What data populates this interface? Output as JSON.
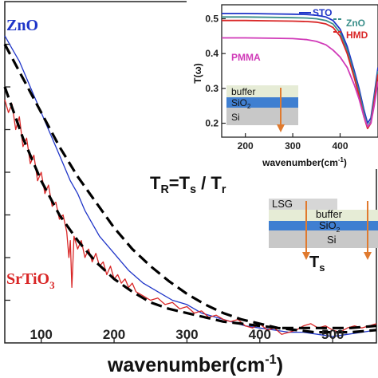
{
  "chart_data": {
    "main": {
      "type": "line",
      "xlabel": "wavenumber(cm",
      "xlabel_sup": "-1",
      "xlabel_close": ")",
      "ylabel": "",
      "xlim": [
        50,
        560
      ],
      "ylim": [
        0.2,
        1.0
      ],
      "xticks": [
        100,
        200,
        300,
        400,
        500
      ],
      "series": [
        {
          "name": "ZnO",
          "color": "#1f35c8",
          "style": "solid",
          "x": [
            50,
            60,
            70,
            80,
            90,
            100,
            110,
            120,
            130,
            140,
            150,
            160,
            170,
            180,
            190,
            200,
            210,
            220,
            240,
            260,
            280,
            300,
            320,
            340,
            360,
            380,
            400,
            420,
            440,
            460,
            480,
            500,
            520,
            540,
            560
          ],
          "y": [
            0.92,
            0.89,
            0.86,
            0.82,
            0.78,
            0.74,
            0.7,
            0.66,
            0.62,
            0.58,
            0.55,
            0.51,
            0.48,
            0.45,
            0.43,
            0.41,
            0.39,
            0.37,
            0.34,
            0.32,
            0.3,
            0.29,
            0.27,
            0.26,
            0.25,
            0.24,
            0.235,
            0.23,
            0.225,
            0.225,
            0.22,
            0.215,
            0.22,
            0.225,
            0.23
          ]
        },
        {
          "name": "SrTiO3",
          "color": "#d92626",
          "style": "solid",
          "x": [
            50,
            55,
            60,
            65,
            70,
            75,
            80,
            85,
            90,
            95,
            100,
            105,
            110,
            115,
            120,
            125,
            130,
            135,
            138,
            140,
            142,
            145,
            150,
            155,
            160,
            165,
            170,
            175,
            180,
            185,
            190,
            195,
            200,
            205,
            210,
            215,
            220,
            225,
            230,
            240,
            250,
            260,
            270,
            280,
            290,
            300,
            310,
            320,
            330,
            340,
            350,
            360,
            370,
            380,
            390,
            400,
            410,
            420,
            430,
            440,
            450,
            460,
            470,
            480,
            490,
            500,
            510,
            520,
            530,
            540,
            550,
            560
          ],
          "y": [
            0.77,
            0.74,
            0.76,
            0.7,
            0.73,
            0.66,
            0.68,
            0.62,
            0.64,
            0.58,
            0.6,
            0.55,
            0.57,
            0.52,
            0.53,
            0.49,
            0.5,
            0.46,
            0.4,
            0.44,
            0.33,
            0.45,
            0.42,
            0.44,
            0.4,
            0.42,
            0.39,
            0.41,
            0.38,
            0.39,
            0.36,
            0.38,
            0.35,
            0.36,
            0.34,
            0.35,
            0.33,
            0.34,
            0.32,
            0.31,
            0.3,
            0.305,
            0.29,
            0.295,
            0.28,
            0.285,
            0.27,
            0.275,
            0.26,
            0.265,
            0.255,
            0.25,
            0.255,
            0.24,
            0.235,
            0.245,
            0.23,
            0.235,
            0.22,
            0.225,
            0.23,
            0.24,
            0.245,
            0.235,
            0.24,
            0.23,
            0.225,
            0.235,
            0.24,
            0.235,
            0.24,
            0.245
          ]
        },
        {
          "name": "fit-upper",
          "color": "#000000",
          "style": "dashed",
          "x": [
            50,
            75,
            100,
            125,
            150,
            175,
            200,
            225,
            250,
            275,
            300,
            325,
            350,
            375,
            400,
            425,
            450,
            475,
            500,
            525,
            560
          ],
          "y": [
            0.9,
            0.82,
            0.74,
            0.66,
            0.59,
            0.53,
            0.47,
            0.42,
            0.38,
            0.345,
            0.315,
            0.29,
            0.27,
            0.255,
            0.245,
            0.235,
            0.23,
            0.225,
            0.225,
            0.225,
            0.23
          ]
        },
        {
          "name": "fit-lower",
          "color": "#000000",
          "style": "dashed",
          "x": [
            50,
            75,
            100,
            125,
            150,
            175,
            200,
            225,
            250,
            275,
            300,
            325,
            350,
            375,
            400,
            425,
            450,
            475,
            500,
            525,
            560
          ],
          "y": [
            0.8,
            0.68,
            0.58,
            0.5,
            0.44,
            0.39,
            0.35,
            0.32,
            0.295,
            0.28,
            0.27,
            0.26,
            0.25,
            0.245,
            0.24,
            0.235,
            0.235,
            0.235,
            0.235,
            0.235,
            0.24
          ]
        }
      ],
      "series_labels": {
        "zno": "ZnO",
        "srtio3_base": "SrTiO",
        "srtio3_sub": "3"
      },
      "equation": "T",
      "equation_sub1": "R",
      "equation_mid": "=T",
      "equation_sub2": "s",
      "equation_mid2": " / T",
      "equation_sub3": "r",
      "ts_label": "T",
      "ts_sub": "s",
      "stack_layers": {
        "lsg": "LSG",
        "buffer": "buffer",
        "sio2_base": "SiO",
        "sio2_sub": "2",
        "si": "Si"
      }
    },
    "inset": {
      "type": "line",
      "ylabel": "T(ω)",
      "xlabel": "wavenumber(cm",
      "xlabel_sup": "-1",
      "xlabel_close": ")",
      "xlim": [
        150,
        480
      ],
      "ylim": [
        0.16,
        0.54
      ],
      "xticks": [
        200,
        300,
        400
      ],
      "yticks": [
        0.2,
        0.3,
        0.4,
        0.5
      ],
      "legend": [
        "STO",
        "ZnO",
        "HMD"
      ],
      "legend_colors": [
        "#1f35c8",
        "#3a8f8a",
        "#d92626"
      ],
      "pmma_label": "PMMA",
      "pmma_color": "#d03ab8",
      "series": [
        {
          "name": "STO",
          "color": "#1f35c8",
          "x": [
            150,
            200,
            250,
            300,
            330,
            350,
            370,
            385,
            400,
            415,
            430,
            440,
            450,
            458,
            465,
            472,
            480
          ],
          "y": [
            0.515,
            0.515,
            0.514,
            0.513,
            0.512,
            0.51,
            0.505,
            0.495,
            0.47,
            0.42,
            0.35,
            0.3,
            0.24,
            0.2,
            0.215,
            0.28,
            0.36
          ]
        },
        {
          "name": "ZnO",
          "color": "#3a8f8a",
          "x": [
            150,
            200,
            250,
            300,
            330,
            350,
            370,
            385,
            400,
            415,
            430,
            440,
            450,
            458,
            465,
            472,
            480
          ],
          "y": [
            0.505,
            0.505,
            0.504,
            0.503,
            0.502,
            0.5,
            0.495,
            0.485,
            0.46,
            0.41,
            0.34,
            0.29,
            0.23,
            0.19,
            0.205,
            0.27,
            0.35
          ]
        },
        {
          "name": "HMD",
          "color": "#d92626",
          "x": [
            150,
            200,
            250,
            300,
            330,
            350,
            370,
            385,
            400,
            415,
            430,
            440,
            450,
            458,
            465,
            472,
            480
          ],
          "y": [
            0.495,
            0.495,
            0.494,
            0.493,
            0.492,
            0.49,
            0.485,
            0.475,
            0.45,
            0.4,
            0.33,
            0.28,
            0.22,
            0.185,
            0.2,
            0.26,
            0.34
          ]
        },
        {
          "name": "PMMA",
          "color": "#d03ab8",
          "x": [
            150,
            200,
            250,
            300,
            330,
            350,
            370,
            385,
            400,
            415,
            430,
            440,
            450,
            458,
            465,
            472,
            480
          ],
          "y": [
            0.445,
            0.445,
            0.444,
            0.443,
            0.44,
            0.435,
            0.425,
            0.41,
            0.39,
            0.36,
            0.31,
            0.27,
            0.22,
            0.19,
            0.2,
            0.25,
            0.32
          ]
        }
      ],
      "stack_layers": {
        "buffer": "buffer",
        "sio2_base": "SiO",
        "sio2_sub": "2",
        "si": "Si"
      }
    }
  }
}
